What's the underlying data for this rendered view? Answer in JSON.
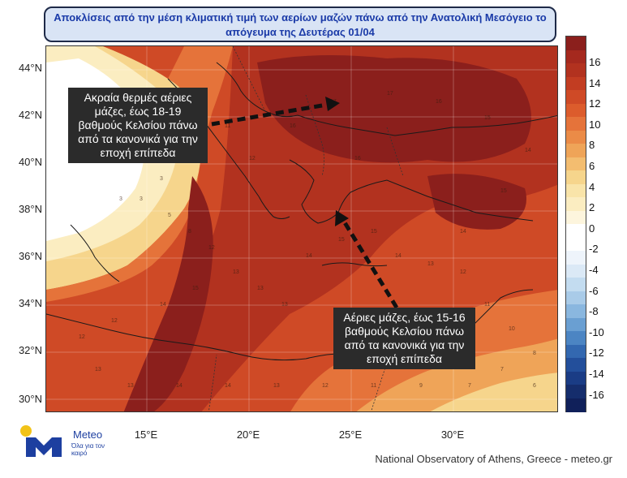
{
  "title": {
    "line1": "Αποκλίσεις από την μέση κλιματική τιμή των αερίων μαζών πάνω από την Ανατολική Μεσόγειο το",
    "line2": "απόγευμα της Δευτέρας 01/04"
  },
  "map": {
    "lat_labels": [
      "44°N",
      "42°N",
      "40°N",
      "38°N",
      "36°N",
      "34°N",
      "32°N",
      "30°N"
    ],
    "lon_labels": [
      "15°E",
      "20°E",
      "25°E",
      "30°E"
    ],
    "colors": {
      "c16": "#8b1f1c",
      "c14": "#b2321f",
      "c12": "#cf4a26",
      "c10": "#e5733a",
      "c8": "#efa458",
      "c6": "#f6d58c",
      "c4": "#fbedc1",
      "c2": "#fdfaee",
      "c0": "#ffffff"
    }
  },
  "colorbar": {
    "labels": [
      "16",
      "14",
      "12",
      "10",
      "8",
      "6",
      "4",
      "2",
      "0",
      "-2",
      "-4",
      "-6",
      "-8",
      "-10",
      "-12",
      "-14",
      "-16"
    ],
    "colors": [
      "#8b1f1c",
      "#a5291e",
      "#b2321f",
      "#c23d22",
      "#cf4a26",
      "#dc5c2c",
      "#e5733a",
      "#eb8b47",
      "#efa458",
      "#f3bd70",
      "#f6d58c",
      "#f9e4a9",
      "#fbedc1",
      "#fdf5dd",
      "#ffffff",
      "#ffffff",
      "#eef4fb",
      "#dbe9f6",
      "#c3dcf0",
      "#a9cbe8",
      "#8ab7df",
      "#6a9fd2",
      "#4c85c3",
      "#3368b0",
      "#234f9b",
      "#1a3c85",
      "#152d6c",
      "#10205a"
    ]
  },
  "annotations": {
    "warm": "Ακραία θερμές αέριες μάζες, έως 18-19 βαθμούς Κελσίου πάνω από τα κανονικά για την εποχή επίπεδα",
    "south": "Αέριες μάζες, έως 15-16 βαθμούς Κελσίου πάνω από τα κανονικά για την εποχή επίπεδα"
  },
  "logo": {
    "name": "Meteo",
    "tagline": "Όλα για τον καιρό"
  },
  "footer": "National Observatory of Athens, Greece - meteo.gr"
}
